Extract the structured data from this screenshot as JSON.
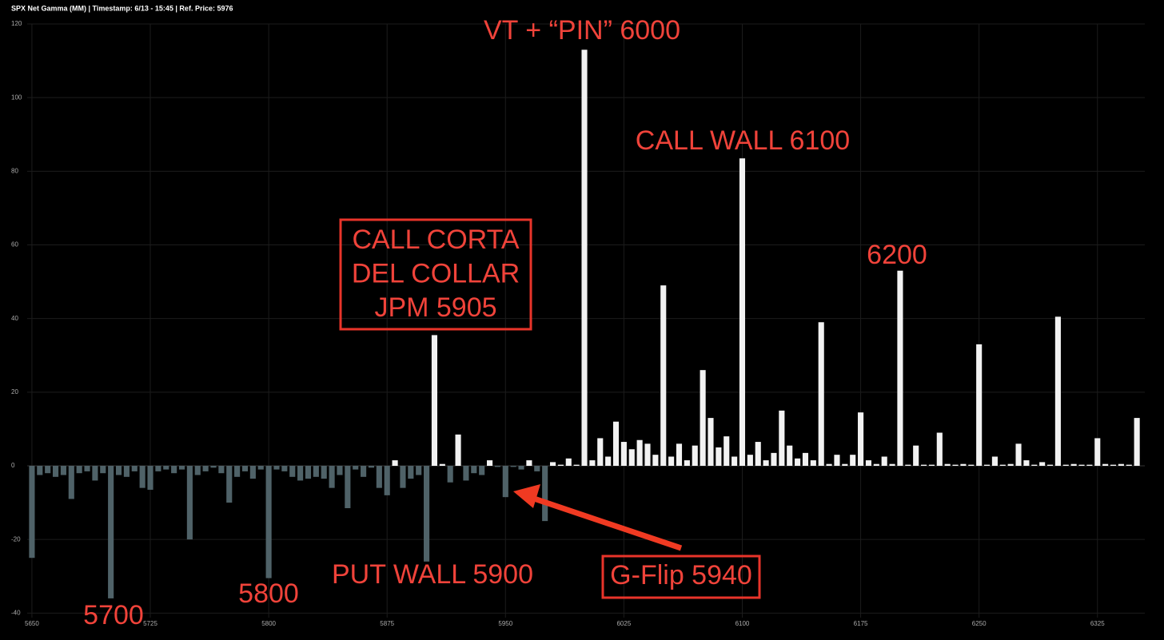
{
  "chart_data": {
    "type": "bar",
    "title": "SPX Net Gamma (MM) | Timestamp: 6/13 - 15:45  | Ref. Price: 5976",
    "x": [
      5650,
      5655,
      5660,
      5665,
      5670,
      5675,
      5680,
      5685,
      5690,
      5695,
      5700,
      5705,
      5710,
      5715,
      5720,
      5725,
      5730,
      5735,
      5740,
      5745,
      5750,
      5755,
      5760,
      5765,
      5770,
      5775,
      5780,
      5785,
      5790,
      5795,
      5800,
      5805,
      5810,
      5815,
      5820,
      5825,
      5830,
      5835,
      5840,
      5845,
      5850,
      5855,
      5860,
      5865,
      5870,
      5875,
      5880,
      5885,
      5890,
      5895,
      5900,
      5905,
      5910,
      5915,
      5920,
      5925,
      5930,
      5935,
      5940,
      5945,
      5950,
      5955,
      5960,
      5965,
      5970,
      5975,
      5980,
      5985,
      5990,
      5995,
      6000,
      6005,
      6010,
      6015,
      6020,
      6025,
      6030,
      6035,
      6040,
      6045,
      6050,
      6055,
      6060,
      6065,
      6070,
      6075,
      6080,
      6085,
      6090,
      6095,
      6100,
      6105,
      6110,
      6115,
      6120,
      6125,
      6130,
      6135,
      6140,
      6145,
      6150,
      6155,
      6160,
      6165,
      6170,
      6175,
      6180,
      6185,
      6190,
      6195,
      6200,
      6205,
      6210,
      6215,
      6220,
      6225,
      6230,
      6235,
      6240,
      6245,
      6250,
      6255,
      6260,
      6265,
      6270,
      6275,
      6280,
      6285,
      6290,
      6295,
      6300,
      6305,
      6310,
      6315,
      6320,
      6325,
      6330,
      6335,
      6340,
      6345,
      6350
    ],
    "values": [
      -25,
      -2.5,
      -2,
      -3,
      -2.5,
      -9,
      -2,
      -1.5,
      -4,
      -2,
      -36,
      -2.5,
      -3,
      -1.5,
      -6,
      -6.5,
      -1.5,
      -1,
      -2,
      -1,
      -20,
      -2.5,
      -1.5,
      -0.5,
      -2,
      -10,
      -3,
      -1.5,
      -3.5,
      -1,
      -30.5,
      -1,
      -1.5,
      -3,
      -4,
      -3.5,
      -3,
      -3.5,
      -6,
      -2.5,
      -11.5,
      -1,
      -3,
      -0.5,
      -6,
      -8,
      1.5,
      -6,
      -3.5,
      -2.5,
      -26,
      35.5,
      0.5,
      -4.5,
      8.5,
      -4,
      -2,
      -2.5,
      1.5,
      -0.3,
      -8.5,
      -0.3,
      -1,
      1.5,
      -1.5,
      -15,
      1,
      0.3,
      2,
      0.3,
      113,
      1.5,
      7.5,
      2.5,
      12,
      6.5,
      4.5,
      7,
      6,
      3,
      49,
      2.5,
      6,
      1.5,
      5.5,
      26,
      13,
      5,
      8,
      2.5,
      83.5,
      3,
      6.5,
      1.5,
      3.5,
      15,
      5.5,
      2,
      3.5,
      1.5,
      39,
      0.5,
      3,
      0.5,
      3,
      14.5,
      1.5,
      0.5,
      2.5,
      0.5,
      53,
      0.3,
      5.5,
      0.3,
      0.3,
      9,
      0.5,
      0.3,
      0.5,
      0.3,
      33,
      0.3,
      2.5,
      0.3,
      0.5,
      6,
      1.5,
      0.3,
      1,
      0.3,
      40.5,
      0.3,
      0.5,
      0.3,
      0.3,
      7.5,
      0.5,
      0.3,
      0.5,
      0.3,
      13
    ],
    "positive_color": "#f2f2f2",
    "negative_color": "#4f6268",
    "xlim": [
      5647,
      6355
    ],
    "xticks": [
      5650,
      5725,
      5800,
      5875,
      5950,
      6025,
      6100,
      6175,
      6250,
      6325
    ],
    "ylim": [
      -41,
      120
    ],
    "yticks": [
      -40,
      -20,
      0,
      20,
      40,
      60,
      80,
      100,
      120
    ],
    "grid": true,
    "annotations": [
      {
        "lines": [
          "VT + “PIN” 6000"
        ]
      },
      {
        "lines": [
          "CALL WALL 6100"
        ]
      },
      {
        "lines": [
          "6200"
        ]
      },
      {
        "lines": [
          "CALL CORTA",
          "DEL COLLAR",
          "JPM 5905"
        ],
        "boxed": true
      },
      {
        "lines": [
          "PUT WALL 5900"
        ]
      },
      {
        "lines": [
          "5800"
        ]
      },
      {
        "lines": [
          "5700"
        ]
      },
      {
        "lines": [
          "G-Flip 5940"
        ],
        "boxed": true
      }
    ]
  }
}
